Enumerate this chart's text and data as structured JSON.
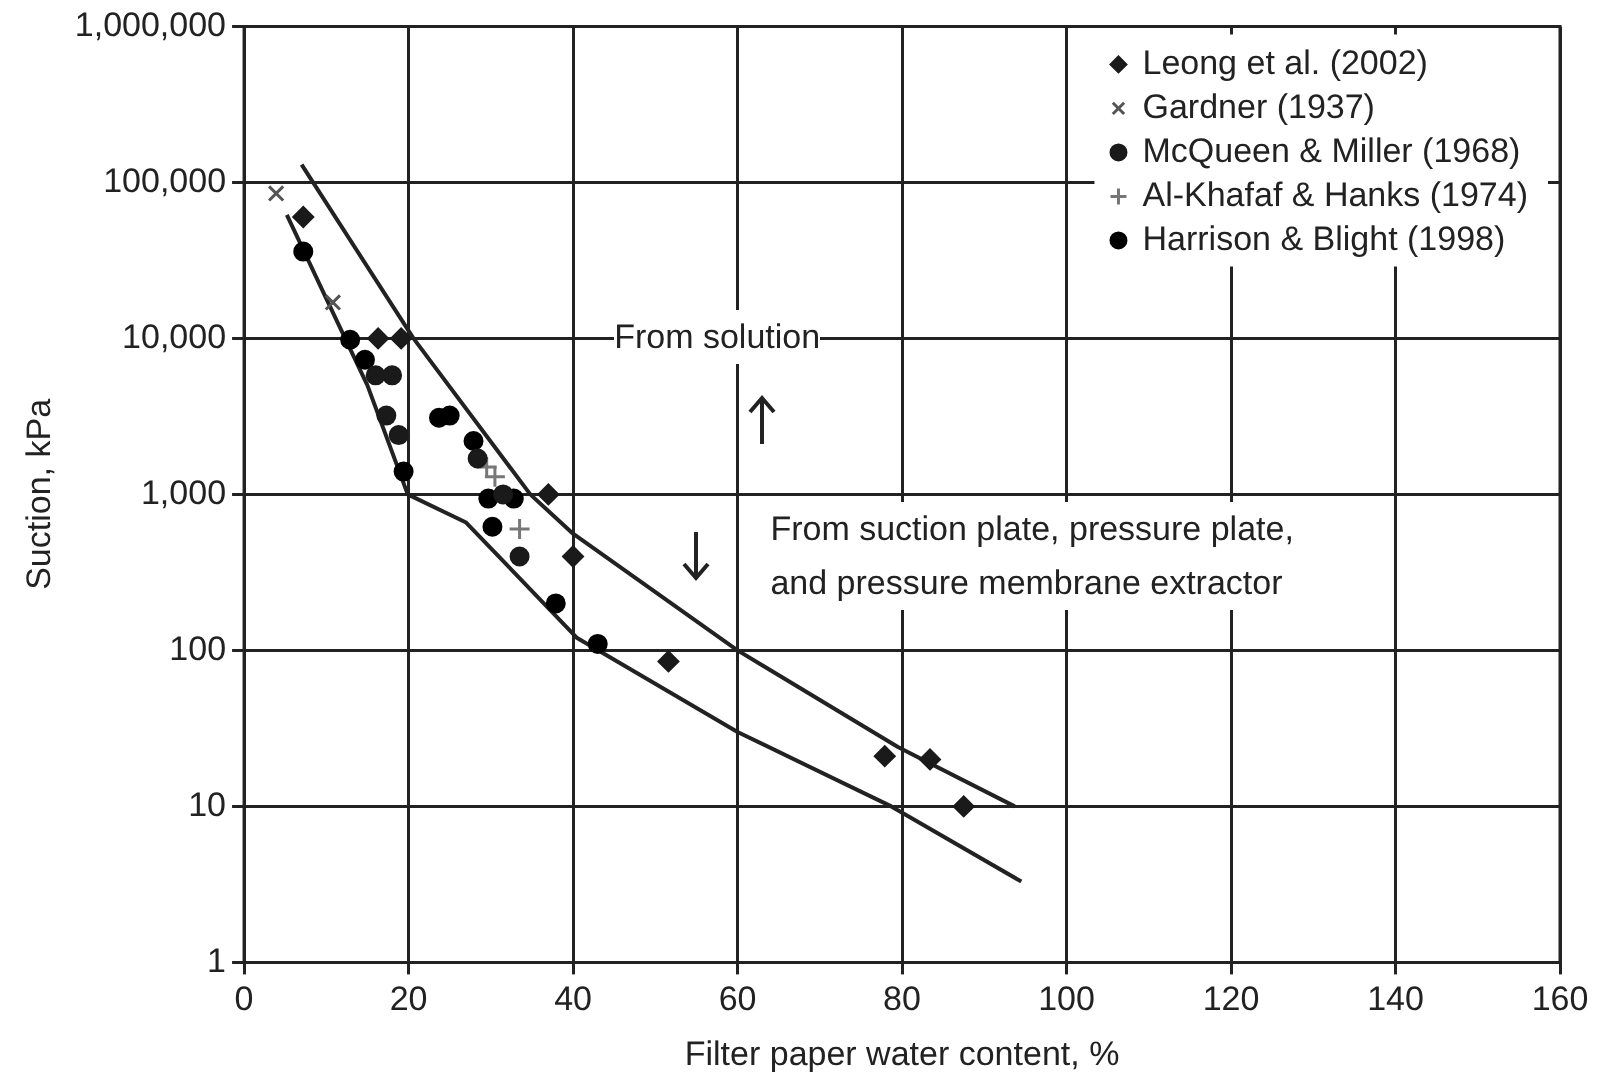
{
  "chart_data": {
    "type": "scatter",
    "xlabel": "Filter paper water content, %",
    "ylabel": "Suction, kPa",
    "xlim": [
      0,
      160
    ],
    "xticks": [
      0,
      20,
      40,
      60,
      80,
      100,
      120,
      140,
      160
    ],
    "ylim": [
      1,
      1000000
    ],
    "yticks": [
      1,
      10,
      100,
      {
        "value": 1000,
        "label": "1,000"
      },
      {
        "value": 10000,
        "label": "10,000"
      },
      {
        "value": 100000,
        "label": "100,000"
      },
      {
        "value": 1000000,
        "label": "1,000,000"
      }
    ],
    "log": "y",
    "grid": true,
    "legend": "top right",
    "annotations": [
      "From solution",
      "From suction plate, pressure plate,\nand pressure membrane extractor"
    ],
    "series": [
      {
        "name": "Leong et al. (2002)",
        "color": "#1a1a1a",
        "marker": "diamond",
        "x": [
          7.2,
          16.3,
          19.1,
          37,
          40,
          51.6,
          77.9,
          83.4,
          87.5
        ],
        "values": [
          60000,
          10000,
          10000,
          1000,
          400,
          85,
          21,
          20,
          10
        ]
      },
      {
        "name": "Gardner (1937)",
        "color": "#555555",
        "marker": "cross",
        "x": [
          3.9,
          10.8
        ],
        "values": [
          85000,
          17000
        ]
      },
      {
        "name": "McQueen & Miller (1968)",
        "color": "#1a1a1a",
        "marker": "circle",
        "x": [
          16,
          18,
          17.3,
          18.8,
          28.4,
          31.5,
          33.5
        ],
        "values": [
          5800,
          5800,
          3200,
          2400,
          1700,
          1000,
          400
        ]
      },
      {
        "name": "Al-Khafaf & Hanks (1974)",
        "color": "#777777",
        "marker": "plus",
        "x": [
          30.5,
          33.5,
          29.5
        ],
        "values": [
          1300,
          600,
          1500
        ]
      },
      {
        "name": "Harrison & Blight (1998)",
        "color": "#000000",
        "marker": "circle",
        "x": [
          7.2,
          12.9,
          14.7,
          19.4,
          23.7,
          25,
          27.9,
          29.7,
          32.8,
          30.2,
          37.9,
          43
        ],
        "values": [
          36000,
          9800,
          7300,
          1400,
          3100,
          3200,
          2200,
          940,
          940,
          620,
          200,
          110
        ]
      },
      {
        "type": "line",
        "color": "#222222",
        "marker": "none",
        "x": [
          7,
          20.6,
          34.8,
          40,
          60,
          79.5,
          93.7
        ],
        "values": [
          130000,
          10000,
          1000,
          560,
          100,
          24,
          10
        ]
      },
      {
        "type": "line",
        "color": "#222222",
        "marker": "none",
        "x": [
          5.2,
          10,
          15,
          19.9,
          27,
          40.5,
          60,
          78.7,
          94.5
        ],
        "values": [
          62000,
          18000,
          5000,
          1000,
          660,
          120,
          30,
          10,
          3.3
        ]
      }
    ]
  }
}
